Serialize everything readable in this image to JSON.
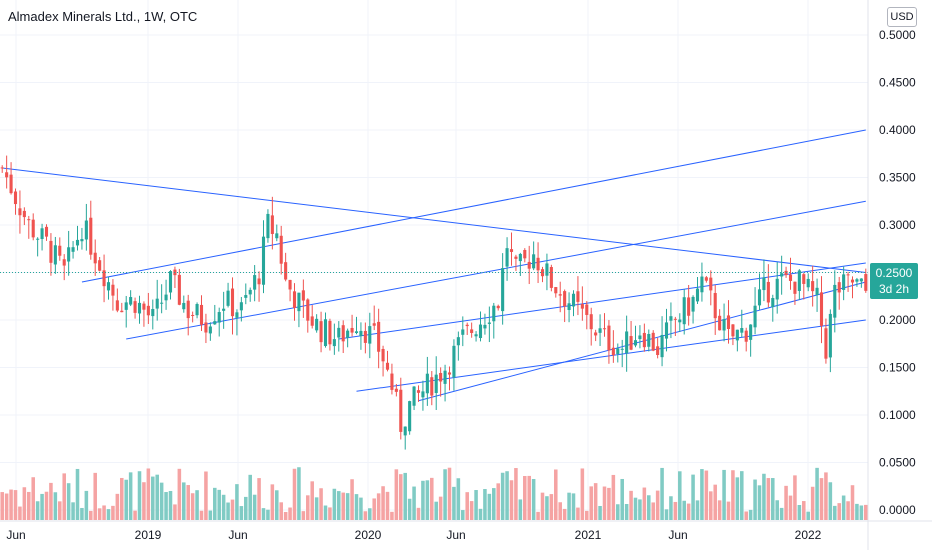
{
  "header": {
    "title": "Almadex Minerals Ltd., 1W, OTC",
    "currency": "USD"
  },
  "price_badge": {
    "price": "0.2500",
    "countdown": "3d 2h"
  },
  "colors": {
    "up": "#26a69a",
    "down": "#ef5350",
    "up_volume": "#80cbc4",
    "down_volume": "#f5a3a3",
    "trendline": "#2962ff",
    "grid": "#f0f3fa"
  },
  "chart_data": {
    "type": "candlestick",
    "timeframe": "1W",
    "x_ticks": [
      "Jun",
      "2019",
      "Jun",
      "2020",
      "Jun",
      "2021",
      "Jun",
      "2022"
    ],
    "y_ticks": [
      "0.5000",
      "0.4500",
      "0.4000",
      "0.3500",
      "0.3000",
      "0.2500",
      "0.2000",
      "0.1500",
      "0.1000",
      "0.0500",
      "0.0000"
    ],
    "ylim": [
      0,
      0.5
    ],
    "last_price": 0.25,
    "grid": true,
    "price_path": [
      [
        0,
        0.36
      ],
      [
        6,
        0.3
      ],
      [
        10,
        0.28
      ],
      [
        14,
        0.25
      ],
      [
        18,
        0.3
      ],
      [
        22,
        0.26
      ],
      [
        26,
        0.22
      ],
      [
        30,
        0.22
      ],
      [
        34,
        0.2
      ],
      [
        38,
        0.24
      ],
      [
        42,
        0.21
      ],
      [
        46,
        0.2
      ],
      [
        50,
        0.22
      ],
      [
        54,
        0.21
      ],
      [
        58,
        0.25
      ],
      [
        60,
        0.3
      ],
      [
        62,
        0.29
      ],
      [
        64,
        0.24
      ],
      [
        68,
        0.21
      ],
      [
        72,
        0.19
      ],
      [
        76,
        0.18
      ],
      [
        80,
        0.2
      ],
      [
        84,
        0.18
      ],
      [
        86,
        0.16
      ],
      [
        88,
        0.13
      ],
      [
        90,
        0.09
      ],
      [
        92,
        0.11
      ],
      [
        96,
        0.13
      ],
      [
        100,
        0.15
      ],
      [
        104,
        0.18
      ],
      [
        108,
        0.2
      ],
      [
        112,
        0.22
      ],
      [
        114,
        0.28
      ],
      [
        116,
        0.25
      ],
      [
        120,
        0.27
      ],
      [
        124,
        0.24
      ],
      [
        128,
        0.22
      ],
      [
        132,
        0.2
      ],
      [
        136,
        0.18
      ],
      [
        140,
        0.17
      ],
      [
        144,
        0.19
      ],
      [
        148,
        0.17
      ],
      [
        152,
        0.2
      ],
      [
        156,
        0.22
      ],
      [
        158,
        0.24
      ],
      [
        160,
        0.22
      ],
      [
        164,
        0.18
      ],
      [
        168,
        0.19
      ],
      [
        172,
        0.23
      ],
      [
        176,
        0.24
      ],
      [
        180,
        0.24
      ],
      [
        184,
        0.22
      ],
      [
        186,
        0.17
      ],
      [
        188,
        0.23
      ],
      [
        192,
        0.24
      ],
      [
        195,
        0.23
      ]
    ],
    "trend_lines": [
      {
        "points": [
          [
            0,
            0.36
          ],
          [
            195,
            0.25
          ]
        ]
      },
      {
        "points": [
          [
            18,
            0.24
          ],
          [
            195,
            0.4
          ]
        ]
      },
      {
        "points": [
          [
            28,
            0.18
          ],
          [
            195,
            0.325
          ]
        ]
      },
      {
        "points": [
          [
            76,
            0.18
          ],
          [
            195,
            0.26
          ]
        ]
      },
      {
        "points": [
          [
            80,
            0.125
          ],
          [
            195,
            0.2
          ]
        ]
      },
      {
        "points": [
          [
            94,
            0.115
          ],
          [
            195,
            0.24
          ]
        ]
      }
    ]
  }
}
